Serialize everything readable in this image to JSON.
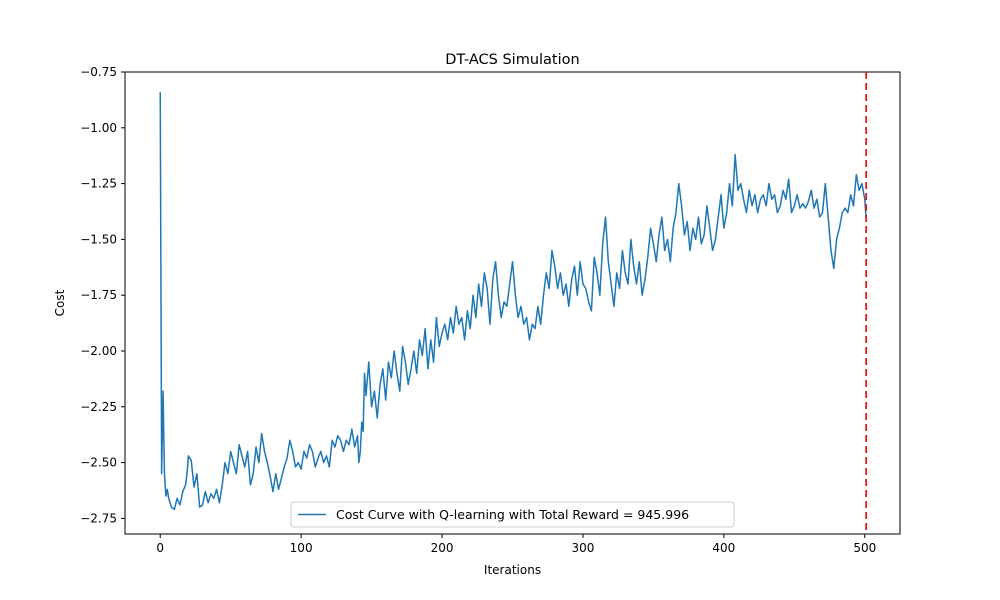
{
  "chart_data": {
    "type": "line",
    "title": "DT-ACS Simulation",
    "xlabel": "Iterations",
    "ylabel": "Cost",
    "xlim": [
      -25,
      525
    ],
    "ylim": [
      -2.82,
      -0.75
    ],
    "xticks": [
      0,
      100,
      200,
      300,
      400,
      500
    ],
    "yticks": [
      -2.75,
      -2.5,
      -2.25,
      -2.0,
      -1.75,
      -1.5,
      -1.25,
      -1.0,
      -0.75
    ],
    "grid": false,
    "legend_position": "bottom-center",
    "vline": {
      "x": 501,
      "color": "#e01b1b",
      "style": "dashed"
    },
    "series": [
      {
        "name": "Cost Curve with Q-learning with Total Reward = 945.996",
        "color": "#1f77b4",
        "points": [
          [
            0,
            -0.84
          ],
          [
            1,
            -2.55
          ],
          [
            2,
            -2.18
          ],
          [
            3,
            -2.55
          ],
          [
            4,
            -2.65
          ],
          [
            5,
            -2.62
          ],
          [
            6,
            -2.66
          ],
          [
            8,
            -2.7
          ],
          [
            10,
            -2.71
          ],
          [
            12,
            -2.66
          ],
          [
            14,
            -2.69
          ],
          [
            16,
            -2.63
          ],
          [
            18,
            -2.6
          ],
          [
            19,
            -2.55
          ],
          [
            20,
            -2.47
          ],
          [
            22,
            -2.49
          ],
          [
            24,
            -2.61
          ],
          [
            26,
            -2.55
          ],
          [
            28,
            -2.7
          ],
          [
            30,
            -2.69
          ],
          [
            32,
            -2.63
          ],
          [
            34,
            -2.68
          ],
          [
            36,
            -2.64
          ],
          [
            38,
            -2.66
          ],
          [
            40,
            -2.62
          ],
          [
            42,
            -2.68
          ],
          [
            44,
            -2.6
          ],
          [
            46,
            -2.5
          ],
          [
            48,
            -2.55
          ],
          [
            50,
            -2.45
          ],
          [
            52,
            -2.5
          ],
          [
            54,
            -2.55
          ],
          [
            56,
            -2.42
          ],
          [
            58,
            -2.47
          ],
          [
            60,
            -2.52
          ],
          [
            62,
            -2.45
          ],
          [
            64,
            -2.6
          ],
          [
            66,
            -2.55
          ],
          [
            68,
            -2.43
          ],
          [
            70,
            -2.5
          ],
          [
            72,
            -2.37
          ],
          [
            74,
            -2.45
          ],
          [
            76,
            -2.5
          ],
          [
            78,
            -2.56
          ],
          [
            80,
            -2.63
          ],
          [
            82,
            -2.55
          ],
          [
            84,
            -2.62
          ],
          [
            86,
            -2.57
          ],
          [
            88,
            -2.52
          ],
          [
            90,
            -2.48
          ],
          [
            92,
            -2.4
          ],
          [
            94,
            -2.45
          ],
          [
            96,
            -2.52
          ],
          [
            98,
            -2.5
          ],
          [
            100,
            -2.53
          ],
          [
            102,
            -2.45
          ],
          [
            104,
            -2.48
          ],
          [
            106,
            -2.42
          ],
          [
            108,
            -2.45
          ],
          [
            110,
            -2.52
          ],
          [
            112,
            -2.48
          ],
          [
            114,
            -2.45
          ],
          [
            116,
            -2.5
          ],
          [
            118,
            -2.47
          ],
          [
            120,
            -2.52
          ],
          [
            122,
            -2.4
          ],
          [
            124,
            -2.43
          ],
          [
            126,
            -2.38
          ],
          [
            128,
            -2.4
          ],
          [
            130,
            -2.45
          ],
          [
            132,
            -2.4
          ],
          [
            134,
            -2.42
          ],
          [
            136,
            -2.35
          ],
          [
            138,
            -2.43
          ],
          [
            140,
            -2.38
          ],
          [
            141,
            -2.5
          ],
          [
            142,
            -2.45
          ],
          [
            143,
            -2.32
          ],
          [
            144,
            -2.36
          ],
          [
            145,
            -2.1
          ],
          [
            146,
            -2.2
          ],
          [
            148,
            -2.05
          ],
          [
            150,
            -2.25
          ],
          [
            152,
            -2.18
          ],
          [
            154,
            -2.3
          ],
          [
            156,
            -2.15
          ],
          [
            158,
            -2.08
          ],
          [
            160,
            -2.22
          ],
          [
            162,
            -2.05
          ],
          [
            164,
            -2.12
          ],
          [
            166,
            -2.0
          ],
          [
            168,
            -2.1
          ],
          [
            170,
            -2.18
          ],
          [
            172,
            -1.98
          ],
          [
            174,
            -2.05
          ],
          [
            176,
            -2.15
          ],
          [
            178,
            -2.08
          ],
          [
            180,
            -2.0
          ],
          [
            182,
            -2.1
          ],
          [
            184,
            -1.95
          ],
          [
            186,
            -2.02
          ],
          [
            188,
            -1.9
          ],
          [
            190,
            -2.08
          ],
          [
            192,
            -1.95
          ],
          [
            194,
            -2.05
          ],
          [
            196,
            -1.85
          ],
          [
            198,
            -1.98
          ],
          [
            200,
            -1.92
          ],
          [
            202,
            -1.88
          ],
          [
            204,
            -1.95
          ],
          [
            206,
            -1.85
          ],
          [
            208,
            -1.92
          ],
          [
            210,
            -1.8
          ],
          [
            212,
            -1.88
          ],
          [
            214,
            -1.85
          ],
          [
            216,
            -1.95
          ],
          [
            218,
            -1.82
          ],
          [
            220,
            -1.9
          ],
          [
            222,
            -1.75
          ],
          [
            224,
            -1.85
          ],
          [
            226,
            -1.7
          ],
          [
            228,
            -1.8
          ],
          [
            230,
            -1.65
          ],
          [
            232,
            -1.72
          ],
          [
            234,
            -1.88
          ],
          [
            236,
            -1.68
          ],
          [
            238,
            -1.6
          ],
          [
            240,
            -1.75
          ],
          [
            242,
            -1.85
          ],
          [
            244,
            -1.78
          ],
          [
            246,
            -1.8
          ],
          [
            248,
            -1.7
          ],
          [
            250,
            -1.6
          ],
          [
            252,
            -1.75
          ],
          [
            254,
            -1.85
          ],
          [
            256,
            -1.8
          ],
          [
            258,
            -1.88
          ],
          [
            260,
            -1.85
          ],
          [
            262,
            -1.95
          ],
          [
            264,
            -1.88
          ],
          [
            266,
            -1.9
          ],
          [
            268,
            -1.8
          ],
          [
            270,
            -1.88
          ],
          [
            272,
            -1.75
          ],
          [
            274,
            -1.65
          ],
          [
            276,
            -1.72
          ],
          [
            278,
            -1.55
          ],
          [
            280,
            -1.62
          ],
          [
            282,
            -1.72
          ],
          [
            284,
            -1.65
          ],
          [
            286,
            -1.75
          ],
          [
            288,
            -1.7
          ],
          [
            290,
            -1.8
          ],
          [
            292,
            -1.68
          ],
          [
            294,
            -1.62
          ],
          [
            296,
            -1.75
          ],
          [
            298,
            -1.6
          ],
          [
            300,
            -1.7
          ],
          [
            302,
            -1.72
          ],
          [
            304,
            -1.78
          ],
          [
            306,
            -1.82
          ],
          [
            308,
            -1.58
          ],
          [
            310,
            -1.65
          ],
          [
            312,
            -1.75
          ],
          [
            314,
            -1.52
          ],
          [
            316,
            -1.4
          ],
          [
            318,
            -1.6
          ],
          [
            320,
            -1.7
          ],
          [
            322,
            -1.8
          ],
          [
            324,
            -1.65
          ],
          [
            326,
            -1.72
          ],
          [
            328,
            -1.55
          ],
          [
            330,
            -1.65
          ],
          [
            332,
            -1.7
          ],
          [
            334,
            -1.5
          ],
          [
            336,
            -1.62
          ],
          [
            338,
            -1.7
          ],
          [
            340,
            -1.6
          ],
          [
            342,
            -1.75
          ],
          [
            344,
            -1.68
          ],
          [
            346,
            -1.58
          ],
          [
            348,
            -1.45
          ],
          [
            350,
            -1.52
          ],
          [
            352,
            -1.6
          ],
          [
            354,
            -1.48
          ],
          [
            356,
            -1.4
          ],
          [
            358,
            -1.55
          ],
          [
            360,
            -1.5
          ],
          [
            362,
            -1.6
          ],
          [
            364,
            -1.45
          ],
          [
            366,
            -1.38
          ],
          [
            368,
            -1.25
          ],
          [
            370,
            -1.35
          ],
          [
            372,
            -1.48
          ],
          [
            374,
            -1.42
          ],
          [
            376,
            -1.55
          ],
          [
            378,
            -1.45
          ],
          [
            380,
            -1.5
          ],
          [
            382,
            -1.4
          ],
          [
            384,
            -1.52
          ],
          [
            386,
            -1.48
          ],
          [
            388,
            -1.35
          ],
          [
            390,
            -1.45
          ],
          [
            392,
            -1.55
          ],
          [
            394,
            -1.5
          ],
          [
            396,
            -1.4
          ],
          [
            398,
            -1.3
          ],
          [
            400,
            -1.45
          ],
          [
            402,
            -1.38
          ],
          [
            404,
            -1.25
          ],
          [
            406,
            -1.35
          ],
          [
            408,
            -1.12
          ],
          [
            410,
            -1.28
          ],
          [
            412,
            -1.25
          ],
          [
            414,
            -1.32
          ],
          [
            416,
            -1.38
          ],
          [
            418,
            -1.28
          ],
          [
            420,
            -1.35
          ],
          [
            422,
            -1.3
          ],
          [
            424,
            -1.38
          ],
          [
            426,
            -1.32
          ],
          [
            428,
            -1.3
          ],
          [
            430,
            -1.35
          ],
          [
            432,
            -1.25
          ],
          [
            434,
            -1.32
          ],
          [
            436,
            -1.3
          ],
          [
            438,
            -1.38
          ],
          [
            440,
            -1.35
          ],
          [
            442,
            -1.28
          ],
          [
            444,
            -1.32
          ],
          [
            446,
            -1.23
          ],
          [
            448,
            -1.38
          ],
          [
            450,
            -1.35
          ],
          [
            452,
            -1.3
          ],
          [
            454,
            -1.36
          ],
          [
            456,
            -1.34
          ],
          [
            458,
            -1.36
          ],
          [
            460,
            -1.33
          ],
          [
            462,
            -1.28
          ],
          [
            464,
            -1.36
          ],
          [
            466,
            -1.32
          ],
          [
            468,
            -1.4
          ],
          [
            470,
            -1.38
          ],
          [
            472,
            -1.25
          ],
          [
            474,
            -1.4
          ],
          [
            476,
            -1.55
          ],
          [
            478,
            -1.63
          ],
          [
            480,
            -1.5
          ],
          [
            482,
            -1.45
          ],
          [
            484,
            -1.38
          ],
          [
            486,
            -1.36
          ],
          [
            488,
            -1.38
          ],
          [
            490,
            -1.3
          ],
          [
            492,
            -1.35
          ],
          [
            494,
            -1.21
          ],
          [
            496,
            -1.28
          ],
          [
            498,
            -1.25
          ],
          [
            500,
            -1.32
          ],
          [
            501,
            -1.41
          ]
        ]
      }
    ]
  }
}
